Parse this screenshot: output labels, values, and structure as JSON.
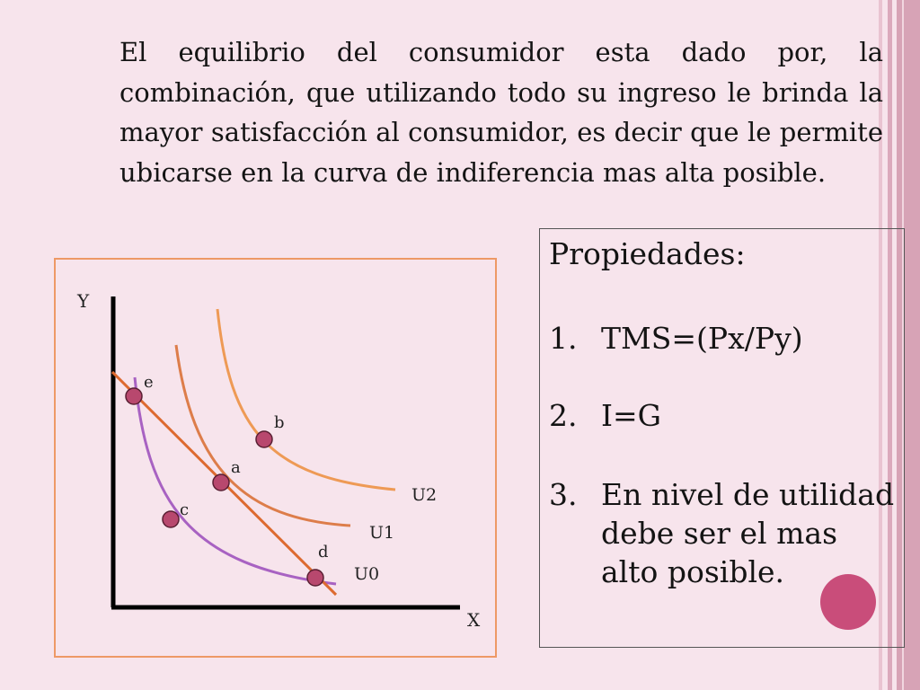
{
  "intro_text": "El equilibrio del consumidor esta dado por, la combinación, que utilizando todo su ingreso le brinda la mayor satisfacción al consumidor, es decir que le permite ubicarse en la curva de indiferencia mas alta posible.",
  "properties": {
    "title": "Propiedades:",
    "items": [
      {
        "num": "1.",
        "text": "TMS=(Px/Py)"
      },
      {
        "num": "2.",
        "text": "I=G"
      },
      {
        "num": "3.",
        "text": "En nivel de utilidad debe ser el mas alto posible."
      }
    ]
  },
  "diagram": {
    "axis_y_label": "Y",
    "axis_x_label": "X",
    "curves": [
      {
        "label": "U0",
        "color": "#a862c2"
      },
      {
        "label": "U1",
        "color": "#dd7d4a"
      },
      {
        "label": "U2",
        "color": "#ee9a55"
      }
    ],
    "budget_line_color": "#dd6a30",
    "points": [
      {
        "label": "e"
      },
      {
        "label": "b"
      },
      {
        "label": "a"
      },
      {
        "label": "c"
      },
      {
        "label": "d"
      }
    ],
    "point_color": "#b8486e"
  },
  "colors": {
    "background": "#f7e4ec",
    "accent": "#c94d7a",
    "frame": "#ee9966"
  }
}
